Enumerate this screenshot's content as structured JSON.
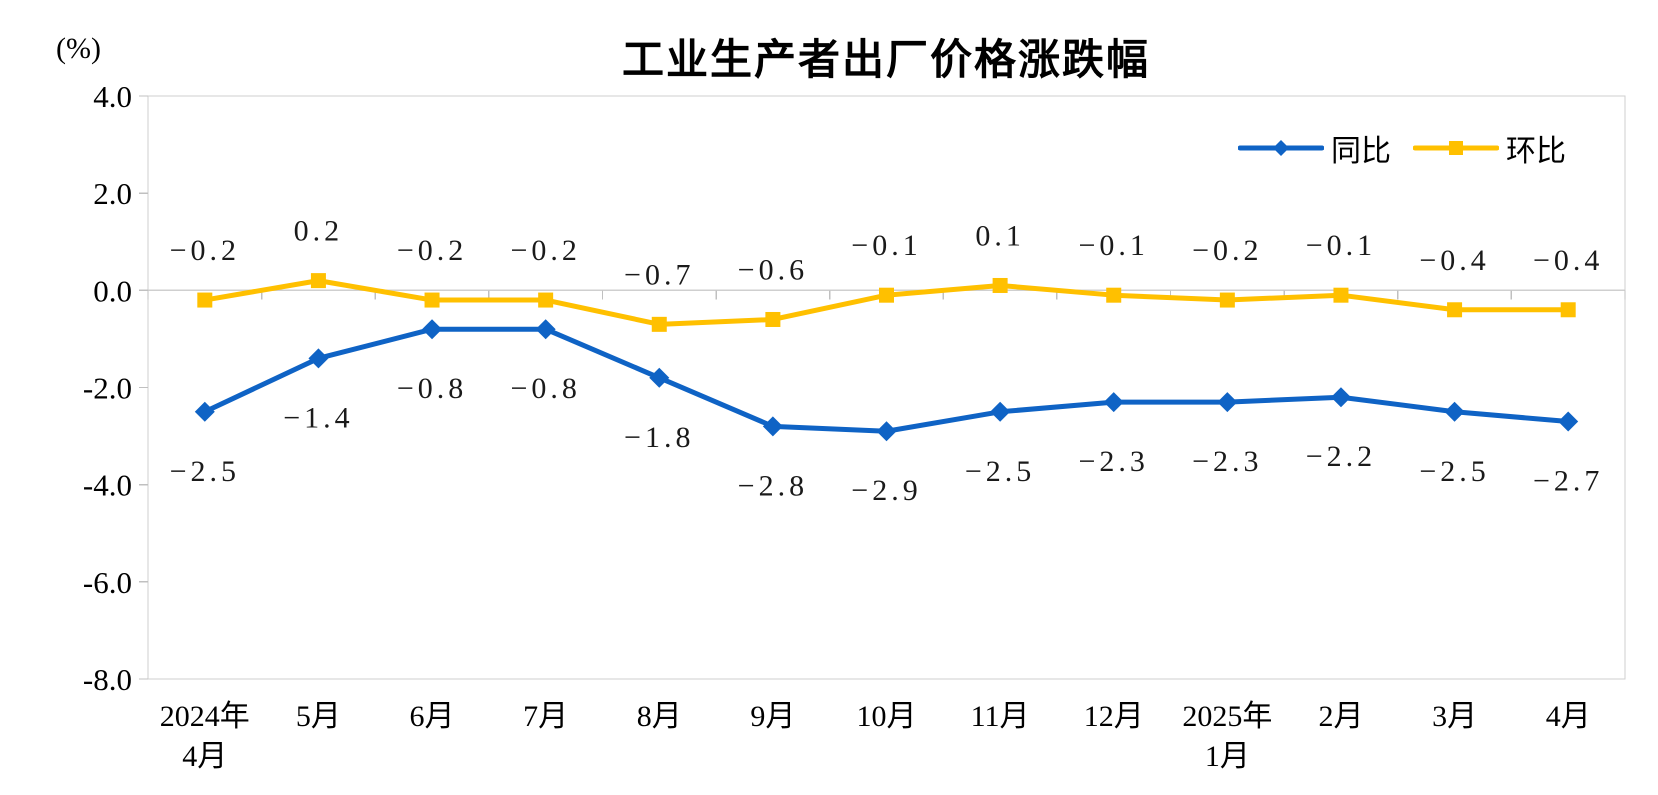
{
  "title": "工业生产者出厂价格涨跌幅",
  "y_axis_unit": "(%)",
  "legend": [
    {
      "label": "同比",
      "color": "#0F63C5",
      "marker": "diamond"
    },
    {
      "label": "环比",
      "color": "#FFC000",
      "marker": "square"
    }
  ],
  "colors": {
    "series_yoy": "#0F63C5",
    "series_mom": "#FFC000",
    "plot_border": "#CFCFCF",
    "zero_line": "#CFCFCF",
    "tick": "#C0C0C0",
    "text": "#000000",
    "data_label": "#1A1A1A"
  },
  "chart_data": {
    "type": "line",
    "title": "工业生产者出厂价格涨跌幅",
    "ylabel": "(%)",
    "ylim": [
      -8.0,
      4.0
    ],
    "ytick_step": 2.0,
    "yticks": [
      "4.0",
      "2.0",
      "0.0",
      "-2.0",
      "-4.0",
      "-6.0",
      "-8.0"
    ],
    "grid": false,
    "legend_position": "top-right-inside",
    "categories": [
      "2024年4月",
      "5月",
      "6月",
      "7月",
      "8月",
      "9月",
      "10月",
      "11月",
      "12月",
      "2025年1月",
      "2月",
      "3月",
      "4月"
    ],
    "category_display": [
      [
        "2024年",
        "4月"
      ],
      [
        "5月"
      ],
      [
        "6月"
      ],
      [
        "7月"
      ],
      [
        "8月"
      ],
      [
        "9月"
      ],
      [
        "10月"
      ],
      [
        "11月"
      ],
      [
        "12月"
      ],
      [
        "2025年",
        "1月"
      ],
      [
        "2月"
      ],
      [
        "3月"
      ],
      [
        "4月"
      ]
    ],
    "series": [
      {
        "name": "同比",
        "color": "#0F63C5",
        "marker": "diamond",
        "label_position": "below",
        "values": [
          -2.5,
          -1.4,
          -0.8,
          -0.8,
          -1.8,
          -2.8,
          -2.9,
          -2.5,
          -2.3,
          -2.3,
          -2.2,
          -2.5,
          -2.7
        ],
        "labels": [
          "-2.5",
          "-1.4",
          "-0.8",
          "-0.8",
          "-1.8",
          "-2.8",
          "-2.9",
          "-2.5",
          "-2.3",
          "-2.3",
          "-2.2",
          "-2.5",
          "-2.7"
        ]
      },
      {
        "name": "环比",
        "color": "#FFC000",
        "marker": "square",
        "label_position": "above",
        "values": [
          -0.2,
          0.2,
          -0.2,
          -0.2,
          -0.7,
          -0.6,
          -0.1,
          0.1,
          -0.1,
          -0.2,
          -0.1,
          -0.4,
          -0.4
        ],
        "labels": [
          "-0.2",
          "0.2",
          "-0.2",
          "-0.2",
          "-0.7",
          "-0.6",
          "-0.1",
          "0.1",
          "-0.1",
          "-0.2",
          "-0.1",
          "-0.4",
          "-0.4"
        ]
      }
    ]
  }
}
